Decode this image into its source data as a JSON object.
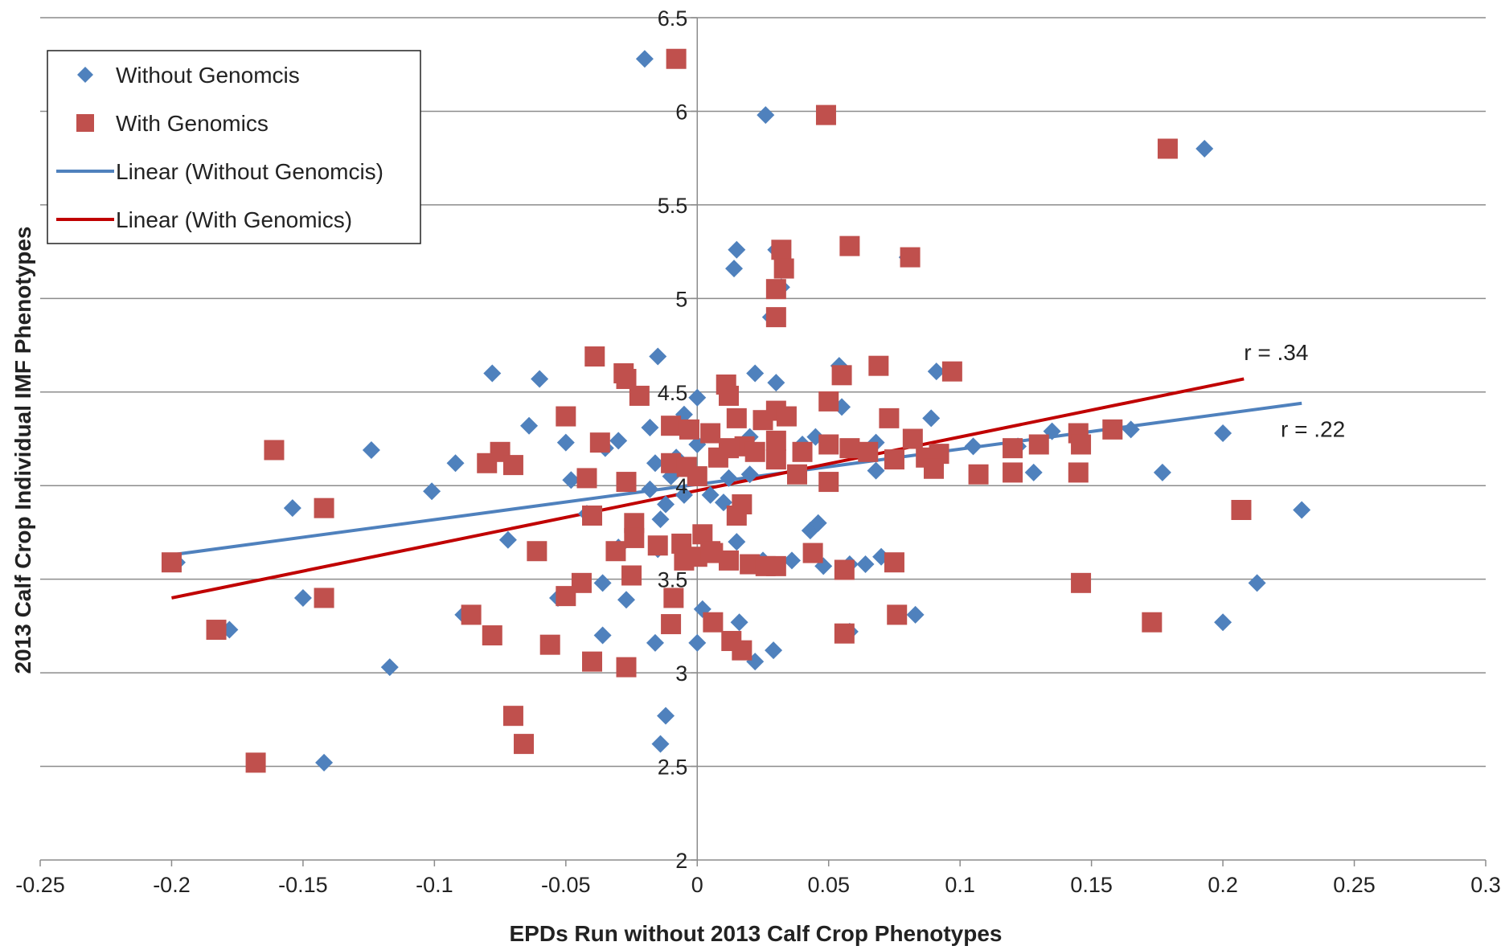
{
  "chart_data": {
    "type": "scatter",
    "xlabel": "EPDs Run without 2013 Calf Crop Phenotypes",
    "ylabel": "2013 Calf Crop Individual IMF Phenotypes",
    "xlim": [
      -0.25,
      0.3
    ],
    "ylim": [
      2,
      6.5
    ],
    "x_ticks": [
      -0.25,
      -0.2,
      -0.15,
      -0.1,
      -0.05,
      0,
      0.05,
      0.1,
      0.15,
      0.2,
      0.25,
      0.3
    ],
    "x_tick_labels": [
      "-0.25",
      "-0.2",
      "-0.15",
      "-0.1",
      "-0.05",
      "0",
      "0.05",
      "0.1",
      "0.15",
      "0.2",
      "0.25",
      "0.3"
    ],
    "y_ticks": [
      2,
      2.5,
      3,
      3.5,
      4,
      4.5,
      5,
      5.5,
      6,
      6.5
    ],
    "y_tick_labels": [
      "2",
      "2.5",
      "3",
      "3.5",
      "4",
      "4.5",
      "5",
      "5.5",
      "6",
      "6.5"
    ],
    "grid": "horizontal",
    "legend_position": "top-left",
    "series": [
      {
        "name": "Without Genomcis",
        "marker": "diamond",
        "color": "#4F81BD",
        "points": [
          [
            -0.02,
            6.28
          ],
          [
            0.026,
            5.98
          ],
          [
            0.193,
            5.8
          ],
          [
            0.015,
            5.26
          ],
          [
            0.014,
            5.16
          ],
          [
            0.03,
            5.26
          ],
          [
            0.028,
            4.9
          ],
          [
            0.032,
            5.06
          ],
          [
            0.08,
            5.22
          ],
          [
            -0.078,
            4.6
          ],
          [
            -0.06,
            4.57
          ],
          [
            -0.015,
            4.69
          ],
          [
            0.022,
            4.6
          ],
          [
            0.03,
            4.55
          ],
          [
            0.054,
            4.64
          ],
          [
            0.091,
            4.61
          ],
          [
            0.0,
            4.47
          ],
          [
            0.012,
            4.51
          ],
          [
            -0.018,
            4.31
          ],
          [
            -0.064,
            4.32
          ],
          [
            -0.124,
            4.19
          ],
          [
            -0.092,
            4.12
          ],
          [
            -0.101,
            3.97
          ],
          [
            -0.154,
            3.88
          ],
          [
            -0.05,
            4.23
          ],
          [
            -0.03,
            4.24
          ],
          [
            -0.035,
            4.2
          ],
          [
            -0.016,
            4.12
          ],
          [
            -0.008,
            4.15
          ],
          [
            -0.005,
            4.38
          ],
          [
            0.0,
            4.22
          ],
          [
            0.02,
            4.26
          ],
          [
            0.04,
            4.22
          ],
          [
            0.045,
            4.26
          ],
          [
            0.055,
            4.42
          ],
          [
            0.068,
            4.23
          ],
          [
            0.068,
            4.08
          ],
          [
            0.089,
            4.36
          ],
          [
            0.105,
            4.21
          ],
          [
            0.122,
            4.21
          ],
          [
            0.128,
            4.07
          ],
          [
            0.135,
            4.29
          ],
          [
            0.165,
            4.3
          ],
          [
            0.177,
            4.07
          ],
          [
            0.2,
            4.28
          ],
          [
            0.23,
            3.87
          ],
          [
            0.213,
            3.48
          ],
          [
            0.2,
            3.27
          ],
          [
            -0.048,
            4.03
          ],
          [
            -0.018,
            3.98
          ],
          [
            -0.014,
            3.82
          ],
          [
            -0.01,
            4.05
          ],
          [
            -0.005,
            3.95
          ],
          [
            -0.012,
            3.9
          ],
          [
            0.005,
            3.95
          ],
          [
            0.01,
            3.91
          ],
          [
            0.012,
            4.04
          ],
          [
            0.02,
            4.06
          ],
          [
            -0.042,
            3.85
          ],
          [
            -0.072,
            3.71
          ],
          [
            -0.03,
            3.67
          ],
          [
            -0.015,
            3.66
          ],
          [
            0.015,
            3.7
          ],
          [
            0.025,
            3.6
          ],
          [
            0.036,
            3.6
          ],
          [
            0.043,
            3.76
          ],
          [
            0.046,
            3.8
          ],
          [
            0.048,
            3.57
          ],
          [
            0.058,
            3.58
          ],
          [
            0.064,
            3.58
          ],
          [
            0.07,
            3.62
          ],
          [
            -0.036,
            3.48
          ],
          [
            -0.027,
            3.39
          ],
          [
            -0.053,
            3.4
          ],
          [
            -0.089,
            3.31
          ],
          [
            -0.15,
            3.4
          ],
          [
            -0.178,
            3.23
          ],
          [
            -0.117,
            3.03
          ],
          [
            -0.036,
            3.2
          ],
          [
            -0.016,
            3.16
          ],
          [
            0.002,
            3.34
          ],
          [
            0.016,
            3.27
          ],
          [
            0.0,
            3.16
          ],
          [
            0.022,
            3.06
          ],
          [
            0.029,
            3.12
          ],
          [
            0.058,
            3.22
          ],
          [
            0.083,
            3.31
          ],
          [
            -0.198,
            3.59
          ],
          [
            -0.012,
            2.77
          ],
          [
            -0.014,
            2.62
          ],
          [
            -0.142,
            2.52
          ]
        ]
      },
      {
        "name": "With Genomics",
        "marker": "square",
        "color": "#C0504D",
        "points": [
          [
            -0.008,
            6.28
          ],
          [
            0.049,
            5.98
          ],
          [
            0.179,
            5.8
          ],
          [
            0.032,
            5.26
          ],
          [
            0.058,
            5.28
          ],
          [
            0.081,
            5.22
          ],
          [
            0.033,
            5.16
          ],
          [
            0.03,
            5.05
          ],
          [
            0.03,
            4.9
          ],
          [
            -0.039,
            4.69
          ],
          [
            -0.027,
            4.57
          ],
          [
            -0.028,
            4.6
          ],
          [
            0.069,
            4.64
          ],
          [
            0.097,
            4.61
          ],
          [
            0.055,
            4.59
          ],
          [
            0.011,
            4.54
          ],
          [
            0.012,
            4.48
          ],
          [
            -0.022,
            4.48
          ],
          [
            0.05,
            4.45
          ],
          [
            -0.05,
            4.37
          ],
          [
            -0.037,
            4.23
          ],
          [
            -0.161,
            4.19
          ],
          [
            -0.075,
            4.18
          ],
          [
            -0.08,
            4.12
          ],
          [
            -0.07,
            4.11
          ],
          [
            -0.01,
            4.32
          ],
          [
            -0.003,
            4.3
          ],
          [
            0.005,
            4.28
          ],
          [
            0.015,
            4.36
          ],
          [
            0.025,
            4.35
          ],
          [
            0.03,
            4.4
          ],
          [
            0.034,
            4.37
          ],
          [
            0.018,
            4.21
          ],
          [
            0.03,
            4.24
          ],
          [
            0.04,
            4.18
          ],
          [
            0.05,
            4.22
          ],
          [
            0.058,
            4.2
          ],
          [
            0.073,
            4.36
          ],
          [
            0.082,
            4.25
          ],
          [
            0.087,
            4.15
          ],
          [
            0.092,
            4.17
          ],
          [
            0.107,
            4.06
          ],
          [
            0.12,
            4.2
          ],
          [
            0.13,
            4.22
          ],
          [
            0.12,
            4.07
          ],
          [
            0.145,
            4.28
          ],
          [
            0.146,
            4.22
          ],
          [
            0.158,
            4.3
          ],
          [
            0.145,
            4.07
          ],
          [
            0.207,
            3.87
          ],
          [
            0.146,
            3.48
          ],
          [
            0.173,
            3.27
          ],
          [
            -0.042,
            4.04
          ],
          [
            -0.027,
            4.02
          ],
          [
            -0.01,
            4.12
          ],
          [
            -0.004,
            4.1
          ],
          [
            0.0,
            4.05
          ],
          [
            0.008,
            4.15
          ],
          [
            0.012,
            4.2
          ],
          [
            0.022,
            4.18
          ],
          [
            0.03,
            4.14
          ],
          [
            0.038,
            4.06
          ],
          [
            0.05,
            4.02
          ],
          [
            0.065,
            4.18
          ],
          [
            0.075,
            4.14
          ],
          [
            0.09,
            4.09
          ],
          [
            -0.142,
            3.88
          ],
          [
            -0.04,
            3.84
          ],
          [
            -0.024,
            3.8
          ],
          [
            -0.024,
            3.72
          ],
          [
            -0.015,
            3.68
          ],
          [
            -0.006,
            3.69
          ],
          [
            0.002,
            3.74
          ],
          [
            0.006,
            3.64
          ],
          [
            0.015,
            3.84
          ],
          [
            0.017,
            3.9
          ],
          [
            -0.061,
            3.65
          ],
          [
            -0.031,
            3.65
          ],
          [
            -0.005,
            3.6
          ],
          [
            0.0,
            3.62
          ],
          [
            0.005,
            3.65
          ],
          [
            0.012,
            3.6
          ],
          [
            0.02,
            3.58
          ],
          [
            0.026,
            3.57
          ],
          [
            0.03,
            3.57
          ],
          [
            0.044,
            3.64
          ],
          [
            0.056,
            3.55
          ],
          [
            0.075,
            3.59
          ],
          [
            -0.025,
            3.52
          ],
          [
            -0.044,
            3.48
          ],
          [
            -0.05,
            3.41
          ],
          [
            -0.009,
            3.4
          ],
          [
            -0.142,
            3.4
          ],
          [
            -0.086,
            3.31
          ],
          [
            -0.078,
            3.2
          ],
          [
            -0.183,
            3.23
          ],
          [
            -0.056,
            3.15
          ],
          [
            -0.01,
            3.26
          ],
          [
            0.006,
            3.27
          ],
          [
            0.013,
            3.17
          ],
          [
            0.017,
            3.12
          ],
          [
            0.056,
            3.21
          ],
          [
            0.076,
            3.31
          ],
          [
            -0.04,
            3.06
          ],
          [
            -0.027,
            3.03
          ],
          [
            -0.2,
            3.59
          ],
          [
            -0.07,
            2.77
          ],
          [
            -0.066,
            2.62
          ],
          [
            -0.168,
            2.52
          ]
        ]
      }
    ],
    "trendlines": [
      {
        "name": "Linear (Without Genomcis)",
        "color": "#4F81BD",
        "x": [
          -0.2,
          0.23
        ],
        "y": [
          3.63,
          4.44
        ]
      },
      {
        "name": "Linear (With Genomics)",
        "color": "#C00000",
        "x": [
          -0.2,
          0.208
        ],
        "y": [
          3.4,
          4.57
        ]
      }
    ],
    "annotations": [
      {
        "text": "r = .34",
        "x": 0.208,
        "y": 4.67
      },
      {
        "text": "r = .22",
        "x": 0.222,
        "y": 4.26
      }
    ],
    "legend": {
      "items": [
        {
          "label": "Without Genomcis",
          "kind": "diamond",
          "color": "#4F81BD"
        },
        {
          "label": "With Genomics",
          "kind": "square",
          "color": "#C0504D"
        },
        {
          "label": "Linear (Without Genomcis)",
          "kind": "line",
          "color": "#4F81BD"
        },
        {
          "label": "Linear (With Genomics)",
          "kind": "line",
          "color": "#C00000"
        }
      ]
    }
  }
}
